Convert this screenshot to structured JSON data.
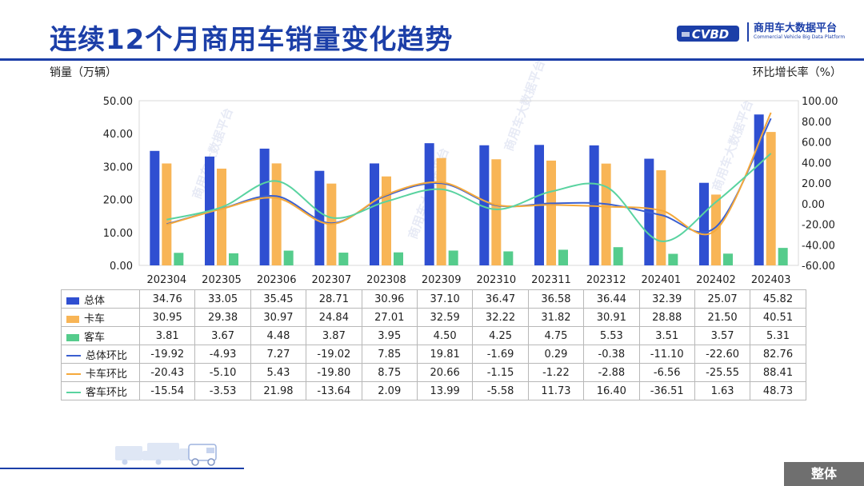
{
  "header": {
    "title": "连续12个月商用车销量变化趋势",
    "logo_mark": "CVBD",
    "logo_cn": "商用车大数据平台",
    "logo_en": "Commercial Vehicle Big Data Platform"
  },
  "units": {
    "left": "销量（万辆）",
    "right": "环比增长率（%）"
  },
  "watermark": "商用车大数据平台",
  "corner_tag": "整体",
  "colors": {
    "total_bar": "#2f4fd1",
    "truck_bar": "#f8b556",
    "bus_bar": "#55cc8c",
    "total_line": "#3a5fd0",
    "truck_line": "#f5a93b",
    "bus_line": "#59d3a0",
    "title": "#1c3fa8"
  },
  "chart_data": {
    "type": "bar",
    "title": "连续12个月商用车销量变化趋势",
    "ylabel": "销量（万辆）",
    "y2label": "环比增长率（%）",
    "ylim": [
      0,
      50
    ],
    "y2lim": [
      -60,
      100
    ],
    "yticks": [
      "0.00",
      "10.00",
      "20.00",
      "30.00",
      "40.00",
      "50.00"
    ],
    "y2ticks": [
      "-60.00",
      "-40.00",
      "-20.00",
      "0.00",
      "20.00",
      "40.00",
      "60.00",
      "80.00",
      "100.00"
    ],
    "categories": [
      "202304",
      "202305",
      "202306",
      "202307",
      "202308",
      "202309",
      "202310",
      "202311",
      "202312",
      "202401",
      "202402",
      "202403"
    ],
    "series": [
      {
        "name": "总体",
        "kind": "bar",
        "axis": "left",
        "values": [
          34.76,
          33.05,
          35.45,
          28.71,
          30.96,
          37.1,
          36.47,
          36.58,
          36.44,
          32.39,
          25.07,
          45.82
        ]
      },
      {
        "name": "卡车",
        "kind": "bar",
        "axis": "left",
        "values": [
          30.95,
          29.38,
          30.97,
          24.84,
          27.01,
          32.59,
          32.22,
          31.82,
          30.91,
          28.88,
          21.5,
          40.51
        ]
      },
      {
        "name": "客车",
        "kind": "bar",
        "axis": "left",
        "values": [
          3.81,
          3.67,
          4.48,
          3.87,
          3.95,
          4.5,
          4.25,
          4.75,
          5.53,
          3.51,
          3.57,
          5.31
        ]
      },
      {
        "name": "总体环比",
        "kind": "line",
        "axis": "right",
        "values": [
          -19.92,
          -4.93,
          7.27,
          -19.02,
          7.85,
          19.81,
          -1.69,
          0.29,
          -0.38,
          -11.1,
          -22.6,
          82.76
        ]
      },
      {
        "name": "卡车环比",
        "kind": "line",
        "axis": "right",
        "values": [
          -20.43,
          -5.1,
          5.43,
          -19.8,
          8.75,
          20.66,
          -1.15,
          -1.22,
          -2.88,
          -6.56,
          -25.55,
          88.41
        ]
      },
      {
        "name": "客车环比",
        "kind": "line",
        "axis": "right",
        "values": [
          -15.54,
          -3.53,
          21.98,
          -13.64,
          2.09,
          13.99,
          -5.58,
          11.73,
          16.4,
          -36.51,
          1.63,
          48.73
        ]
      }
    ],
    "table": {
      "rows": [
        {
          "label": "总体",
          "values": [
            "34.76",
            "33.05",
            "35.45",
            "28.71",
            "30.96",
            "37.10",
            "36.47",
            "36.58",
            "36.44",
            "32.39",
            "25.07",
            "45.82"
          ]
        },
        {
          "label": "卡车",
          "values": [
            "30.95",
            "29.38",
            "30.97",
            "24.84",
            "27.01",
            "32.59",
            "32.22",
            "31.82",
            "30.91",
            "28.88",
            "21.50",
            "40.51"
          ]
        },
        {
          "label": "客车",
          "values": [
            "3.81",
            "3.67",
            "4.48",
            "3.87",
            "3.95",
            "4.50",
            "4.25",
            "4.75",
            "5.53",
            "3.51",
            "3.57",
            "5.31"
          ]
        },
        {
          "label": "总体环比",
          "values": [
            "-19.92",
            "-4.93",
            "7.27",
            "-19.02",
            "7.85",
            "19.81",
            "-1.69",
            "0.29",
            "-0.38",
            "-11.10",
            "-22.60",
            "82.76"
          ]
        },
        {
          "label": "卡车环比",
          "values": [
            "-20.43",
            "-5.10",
            "5.43",
            "-19.80",
            "8.75",
            "20.66",
            "-1.15",
            "-1.22",
            "-2.88",
            "-6.56",
            "-25.55",
            "88.41"
          ]
        },
        {
          "label": "客车环比",
          "values": [
            "-15.54",
            "-3.53",
            "21.98",
            "-13.64",
            "2.09",
            "13.99",
            "-5.58",
            "11.73",
            "16.40",
            "-36.51",
            "1.63",
            "48.73"
          ]
        }
      ]
    }
  }
}
